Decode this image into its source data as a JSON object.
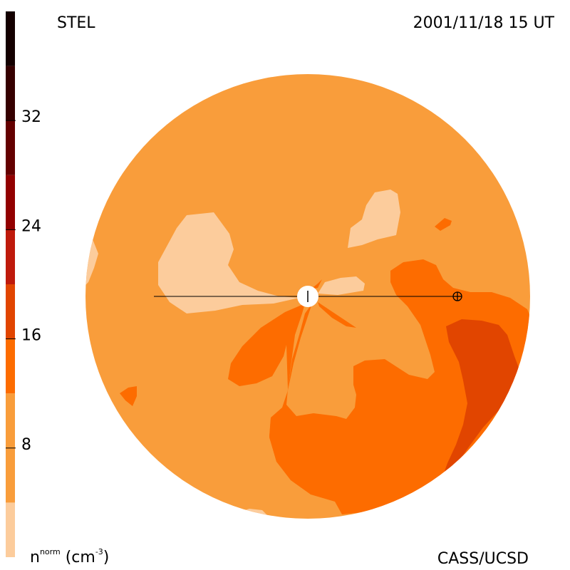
{
  "header": {
    "left_label": "STEL",
    "right_label": "2001/11/18 15 UT"
  },
  "footer": {
    "right_label": "CASS/UCSD"
  },
  "colorbar": {
    "unit_base": "n",
    "unit_sup": "norm",
    "unit_rest": "(cm",
    "unit_exp": "-3",
    "unit_close": ")",
    "ticks": [
      {
        "value": 8,
        "label": "8"
      },
      {
        "value": 16,
        "label": "16"
      },
      {
        "value": 24,
        "label": "24"
      },
      {
        "value": 32,
        "label": "32"
      }
    ],
    "bands": [
      {
        "from": 0,
        "to": 4,
        "color": "#fccc9c"
      },
      {
        "from": 4,
        "to": 12,
        "color": "#f99d3b"
      },
      {
        "from": 12,
        "to": 16,
        "color": "#fd6c00"
      },
      {
        "from": 16,
        "to": 20,
        "color": "#e14500"
      },
      {
        "from": 20,
        "to": 24,
        "color": "#bf1a0c"
      },
      {
        "from": 24,
        "to": 28,
        "color": "#920000"
      },
      {
        "from": 28,
        "to": 32,
        "color": "#640000"
      },
      {
        "from": 32,
        "to": 36,
        "color": "#360000"
      },
      {
        "from": 36,
        "to": 40,
        "color": "#140000"
      }
    ],
    "range": [
      0,
      40
    ]
  },
  "colors": {
    "base": "#f99d3b",
    "light": "#fccc9c",
    "mid": "#fd6c00",
    "dark": "#e14500"
  }
}
